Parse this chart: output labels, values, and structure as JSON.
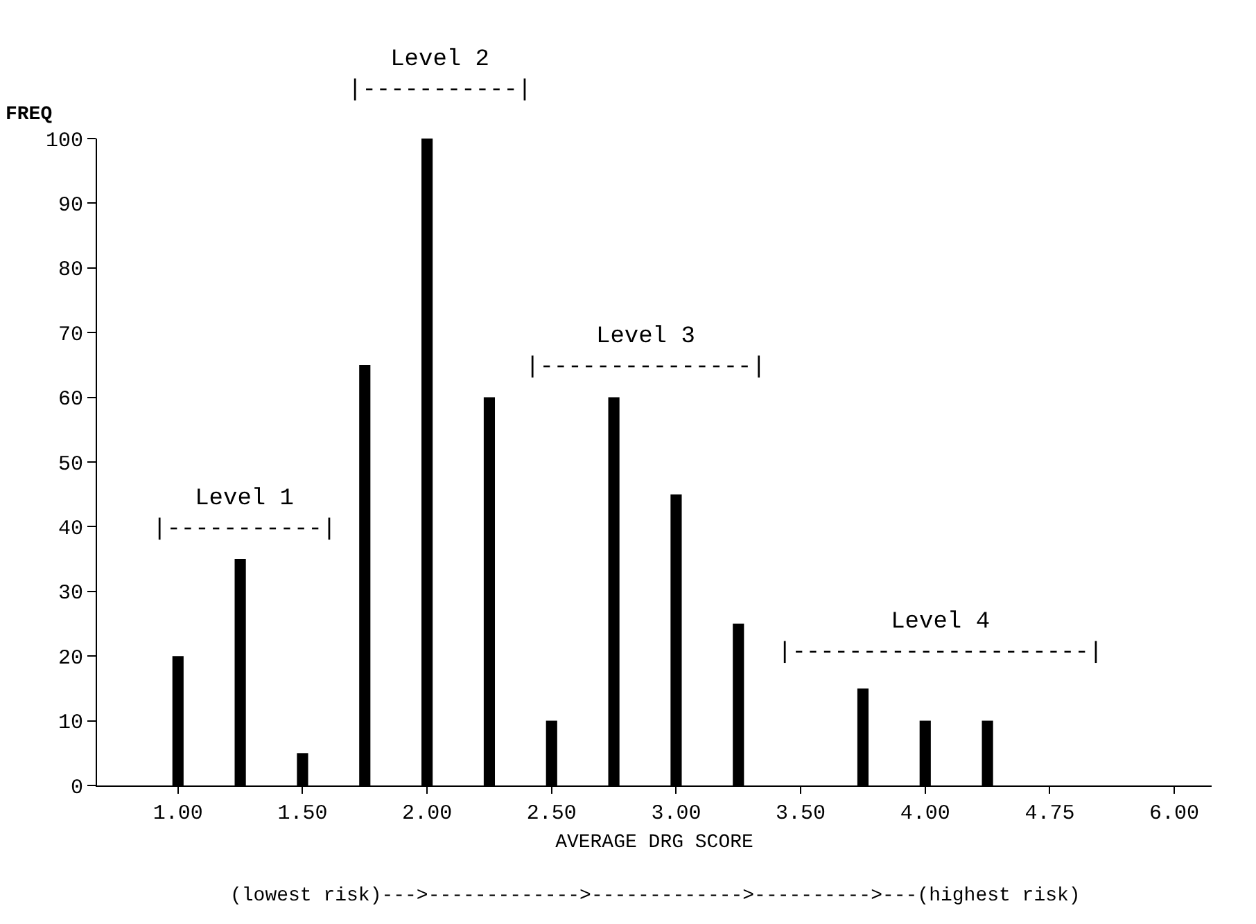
{
  "chart_data": {
    "type": "bar",
    "categories": [
      "1.00",
      null,
      "1.50",
      null,
      "2.00",
      null,
      "2.50",
      null,
      "3.00",
      null,
      "3.50",
      null,
      "4.00",
      null,
      "4.75",
      null,
      "6.00"
    ],
    "values": [
      20,
      35,
      5,
      65,
      100,
      60,
      10,
      60,
      45,
      25,
      0,
      15,
      10,
      10,
      0,
      0,
      0
    ],
    "color": "#000000",
    "xlabel": "AVERAGE DRG SCORE",
    "ylabel": "FREQ",
    "ylim": [
      0,
      100
    ],
    "yticks": [
      0,
      10,
      20,
      30,
      40,
      50,
      60,
      70,
      80,
      90,
      100
    ],
    "annotations": [
      "Level 1\n|-----------|",
      "Level 2\n|-----------|",
      "Level 3\n|---------------|",
      "Level 4\n|---------------------|",
      "(lowest risk)--->------------->------------->---------->---(highest risk)"
    ]
  }
}
